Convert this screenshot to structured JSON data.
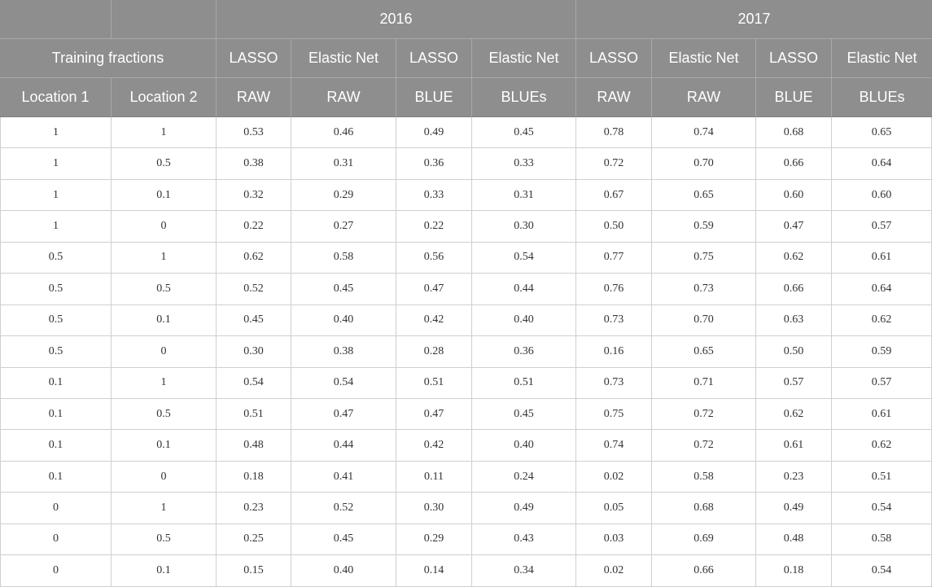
{
  "table": {
    "header": {
      "year_2016": "2016",
      "year_2017": "2017",
      "training_fractions": "Training fractions",
      "methods": [
        "LASSO",
        "Elastic Net",
        "LASSO",
        "Elastic Net",
        "LASSO",
        "Elastic Net",
        "LASSO",
        "Elastic Net"
      ],
      "subheaders": [
        "Location 1",
        "Location 2",
        "RAW",
        "RAW",
        "BLUE",
        "BLUEs",
        "RAW",
        "RAW",
        "BLUE",
        "BLUEs"
      ]
    },
    "rows": [
      [
        "1",
        "1",
        "0.53",
        "0.46",
        "0.49",
        "0.45",
        "0.78",
        "0.74",
        "0.68",
        "0.65"
      ],
      [
        "1",
        "0.5",
        "0.38",
        "0.31",
        "0.36",
        "0.33",
        "0.72",
        "0.70",
        "0.66",
        "0.64"
      ],
      [
        "1",
        "0.1",
        "0.32",
        "0.29",
        "0.33",
        "0.31",
        "0.67",
        "0.65",
        "0.60",
        "0.60"
      ],
      [
        "1",
        "0",
        "0.22",
        "0.27",
        "0.22",
        "0.30",
        "0.50",
        "0.59",
        "0.47",
        "0.57"
      ],
      [
        "0.5",
        "1",
        "0.62",
        "0.58",
        "0.56",
        "0.54",
        "0.77",
        "0.75",
        "0.62",
        "0.61"
      ],
      [
        "0.5",
        "0.5",
        "0.52",
        "0.45",
        "0.47",
        "0.44",
        "0.76",
        "0.73",
        "0.66",
        "0.64"
      ],
      [
        "0.5",
        "0.1",
        "0.45",
        "0.40",
        "0.42",
        "0.40",
        "0.73",
        "0.70",
        "0.63",
        "0.62"
      ],
      [
        "0.5",
        "0",
        "0.30",
        "0.38",
        "0.28",
        "0.36",
        "0.16",
        "0.65",
        "0.50",
        "0.59"
      ],
      [
        "0.1",
        "1",
        "0.54",
        "0.54",
        "0.51",
        "0.51",
        "0.73",
        "0.71",
        "0.57",
        "0.57"
      ],
      [
        "0.1",
        "0.5",
        "0.51",
        "0.47",
        "0.47",
        "0.45",
        "0.75",
        "0.72",
        "0.62",
        "0.61"
      ],
      [
        "0.1",
        "0.1",
        "0.48",
        "0.44",
        "0.42",
        "0.40",
        "0.74",
        "0.72",
        "0.61",
        "0.62"
      ],
      [
        "0.1",
        "0",
        "0.18",
        "0.41",
        "0.11",
        "0.24",
        "0.02",
        "0.58",
        "0.23",
        "0.51"
      ],
      [
        "0",
        "1",
        "0.23",
        "0.52",
        "0.30",
        "0.49",
        "0.05",
        "0.68",
        "0.49",
        "0.54"
      ],
      [
        "0",
        "0.5",
        "0.25",
        "0.45",
        "0.29",
        "0.43",
        "0.03",
        "0.69",
        "0.48",
        "0.58"
      ],
      [
        "0",
        "0.1",
        "0.15",
        "0.40",
        "0.14",
        "0.34",
        "0.02",
        "0.66",
        "0.18",
        "0.54"
      ]
    ],
    "colors": {
      "header_background": "#8e8e8e",
      "header_text": "#ffffff",
      "body_text": "#333333",
      "grid_line": "#cfcfcf"
    }
  }
}
